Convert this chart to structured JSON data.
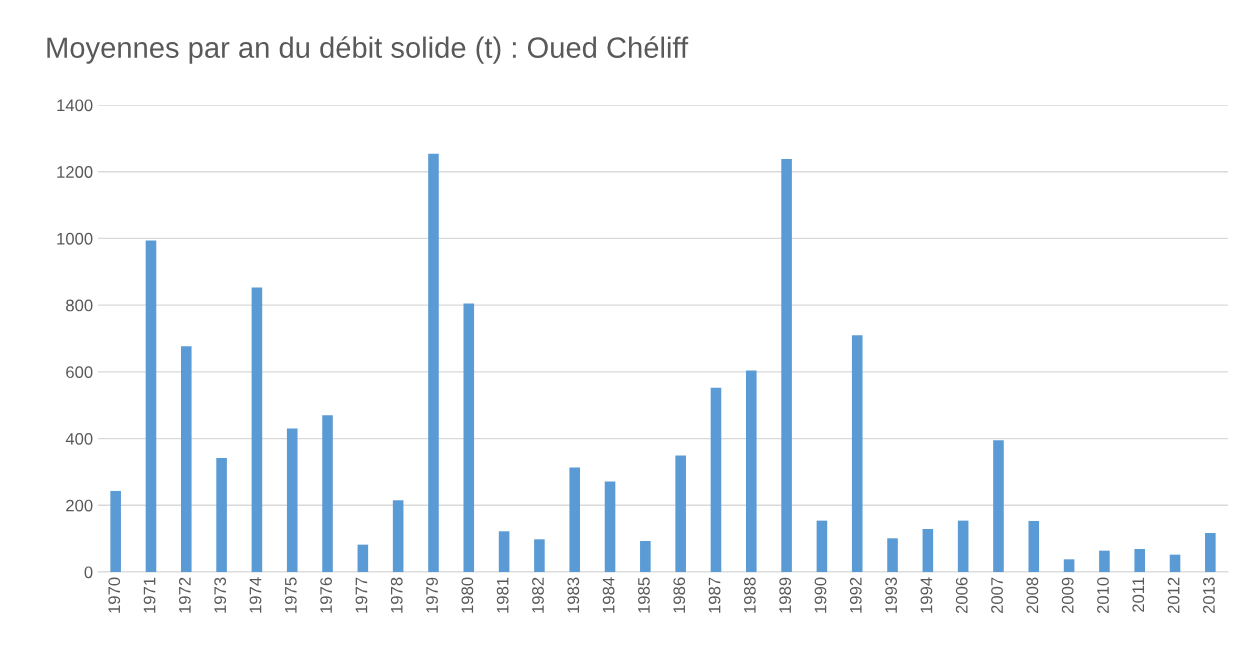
{
  "chart_data": {
    "type": "bar",
    "title": "Moyennes par an du débit solide (t) : Oued Chéliff",
    "categories": [
      "1970",
      "1971",
      "1972",
      "1973",
      "1974",
      "1975",
      "1976",
      "1977",
      "1978",
      "1979",
      "1980",
      "1981",
      "1982",
      "1983",
      "1984",
      "1985",
      "1986",
      "1987",
      "1988",
      "1989",
      "1990",
      "1992",
      "1993",
      "1994",
      "2006",
      "2007",
      "2008",
      "2009",
      "2010",
      "2011",
      "2012",
      "2013"
    ],
    "values": [
      243,
      994,
      677,
      342,
      853,
      430,
      470,
      82,
      215,
      1254,
      805,
      122,
      98,
      313,
      271,
      93,
      349,
      552,
      604,
      1238,
      154,
      710,
      101,
      129,
      154,
      395,
      153,
      38,
      64,
      69,
      52,
      117
    ],
    "color": "#5b9bd5",
    "ylim": [
      0,
      1400
    ],
    "yticks": [
      0,
      200,
      400,
      600,
      800,
      1000,
      1200,
      1400
    ],
    "grid": "y"
  }
}
